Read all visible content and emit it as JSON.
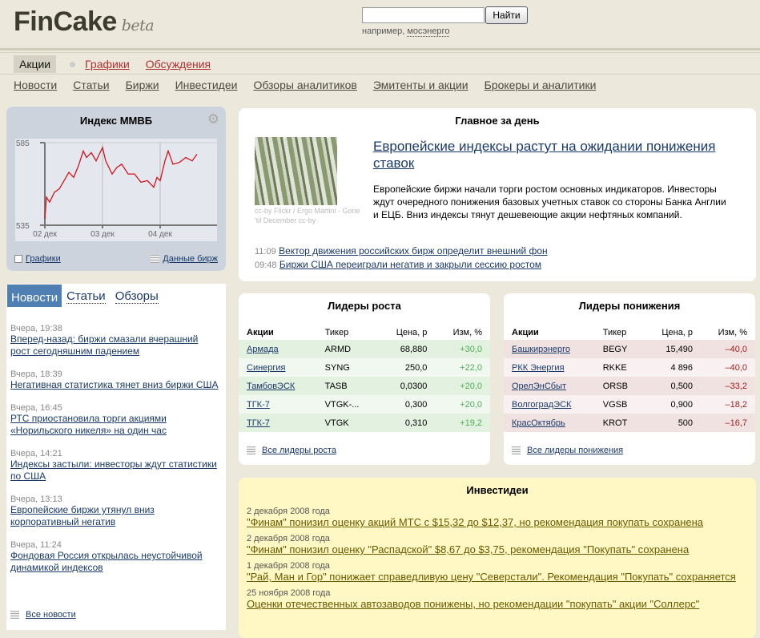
{
  "header": {
    "logo": "FinCake",
    "beta": "beta",
    "search_value": "",
    "search_button": "Найти",
    "hint_prefix": "например,",
    "hint_example": "мосэнерго"
  },
  "tabs": [
    {
      "label": "Акции",
      "active": true
    },
    {
      "label": "Графики"
    },
    {
      "label": "Обсуждения"
    }
  ],
  "subnav": [
    "Новости",
    "Статьи",
    "Биржи",
    "Инвестидеи",
    "Обзоры аналитиков",
    "Эмитенты и акции",
    "Брокеры и аналитики"
  ],
  "index_widget": {
    "title": "Индекс ММВБ",
    "link_charts": "Графики",
    "link_data": "Данные бирж"
  },
  "chart_data": {
    "type": "line",
    "title": "Индекс ММВБ",
    "ylim": [
      535,
      585
    ],
    "yticks": [
      "585",
      "535"
    ],
    "xticks": [
      "02 дек",
      "03 дек",
      "04 дек"
    ],
    "color": "#d0141e",
    "points": [
      [
        "02 дек 10:00",
        539
      ],
      [
        "02 дек 10:15",
        552
      ],
      [
        "02 дек 10:45",
        549
      ],
      [
        "02 дек 11:30",
        555
      ],
      [
        "02 дек 12:15",
        557
      ],
      [
        "02 дек 13:00",
        562
      ],
      [
        "02 дек 13:45",
        567
      ],
      [
        "02 дек 14:30",
        564
      ],
      [
        "02 дек 15:15",
        571
      ],
      [
        "02 дек 16:00",
        580
      ],
      [
        "02 дек 16:30",
        576
      ],
      [
        "02 дек 17:15",
        579
      ],
      [
        "02 дек 18:00",
        574
      ],
      [
        "02 дек 18:30",
        578
      ],
      [
        "03 дек 10:00",
        582
      ],
      [
        "03 дек 10:30",
        574
      ],
      [
        "03 дек 11:30",
        566
      ],
      [
        "03 дек 12:15",
        570
      ],
      [
        "03 дек 13:00",
        572
      ],
      [
        "03 дек 14:00",
        566
      ],
      [
        "03 дек 15:00",
        566
      ],
      [
        "03 дек 16:00",
        561
      ],
      [
        "03 дек 17:00",
        562
      ],
      [
        "03 дек 18:00",
        558
      ],
      [
        "03 дек 18:30",
        564
      ],
      [
        "04 дек 10:00",
        562
      ],
      [
        "04 дек 10:45",
        574
      ],
      [
        "04 дек 11:15",
        580
      ],
      [
        "04 дек 12:00",
        572
      ],
      [
        "04 дек 13:00",
        573
      ],
      [
        "04 дек 14:00",
        576
      ],
      [
        "04 дек 15:00",
        574
      ],
      [
        "04 дек 15:45",
        578
      ]
    ]
  },
  "news": {
    "tabs": [
      "Новости",
      "Статьи",
      "Обзоры"
    ],
    "items": [
      {
        "time": "Вчера, 19:38",
        "title": "Вперед-назад: биржи смазали вчерашний рост сегодняшним падением"
      },
      {
        "time": "Вчера, 18:39",
        "title": "Негативная статистика тянет вниз биржи США"
      },
      {
        "time": "Вчера, 16:45",
        "title": "РТС приостановила торги акциями «Норильского никеля» на один час"
      },
      {
        "time": "Вчера, 14:21",
        "title": "Индексы застыли: инвесторы ждут статистики по США"
      },
      {
        "time": "Вчера, 13:13",
        "title": "Европейские биржи утянул вниз корпоративный негатив"
      },
      {
        "time": "Вчера, 11:24",
        "title": "Фондовая Россия открылась неустойчивой динамикой индексов"
      }
    ],
    "all_link": "Все новости"
  },
  "main": {
    "title": "Главное за день",
    "headline": "Европейские индексы растут на ожидании понижения ставок",
    "caption": "cc-by Flickr / Ergo Martini - Gone 'til December cc-by",
    "lead": "Европейские биржи начали торги ростом основных индикаторов. Инвесторы ждут очередного понижения базовых учетных ставок со стороны Банка Англии и ЕЦБ. Вниз индексы тянут дешевеющие акции нефтяных компаний.",
    "minor": [
      {
        "time": "11:09",
        "title": "Вектор движения российских бирж определит внешний фон"
      },
      {
        "time": "09:48",
        "title": "Биржи США переиграли негатив и закрыли сессию ростом"
      }
    ]
  },
  "gainers": {
    "title": "Лидеры роста",
    "headers": [
      "Акции",
      "Тикер",
      "Цена, р",
      "Изм, %"
    ],
    "rows": [
      [
        "Армада",
        "ARMD",
        "68,880",
        "+30,0"
      ],
      [
        "Синергия",
        "SYNG",
        "250,0",
        "+22,0"
      ],
      [
        "ТамбовЭСК",
        "TASB",
        "0,0300",
        "+20,0"
      ],
      [
        "ТГК-7",
        "VTGK-...",
        "0,300",
        "+20,0"
      ],
      [
        "ТГК-7",
        "VTGK",
        "0,310",
        "+19,2"
      ]
    ],
    "link": "Все лидеры роста"
  },
  "losers": {
    "title": "Лидеры понижения",
    "headers": [
      "Акции",
      "Тикер",
      "Цена, р",
      "Изм, %"
    ],
    "rows": [
      [
        "Башкирэнерго",
        "BEGY",
        "15,490",
        "–40,0"
      ],
      [
        "РКК Энергия",
        "RKKE",
        "4 896",
        "–40,0"
      ],
      [
        "ОрелЭнСбыт",
        "ORSB",
        "0,500",
        "–33,2"
      ],
      [
        "ВолгоградЭСК",
        "VGSB",
        "0,900",
        "–18,2"
      ],
      [
        "КрасОктябрь",
        "KROT",
        "500",
        "–16,7"
      ]
    ],
    "link": "Все лидеры понижения"
  },
  "ideas": {
    "title": "Инвестидеи",
    "items": [
      {
        "date": "2 декабря 2008 года",
        "title": "\"Финам\" понизил оценку акций МТС с $15,32 до $12,37, но рекомендация покупать сохранена"
      },
      {
        "date": "2 декабря 2008 года",
        "title": "\"Финам\" понизил оценку \"Распадской\" $8,67 до $3,75, рекомендация \"Покупать\" сохранена"
      },
      {
        "date": "1 декабря 2008 года",
        "title": "\"Рай, Ман и Гор\" понижает справедливую цену \"Северстали\". Рекомендация \"Покупать\" сохраняется"
      },
      {
        "date": "25 ноября 2008 года",
        "title": "Оценки отечественных автозаводов понижены, но рекомендации \"покупать\" акции \"Соллерс\""
      }
    ]
  }
}
